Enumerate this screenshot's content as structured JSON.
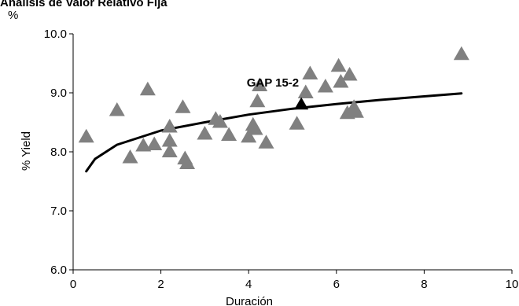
{
  "chart_data": {
    "type": "scatter",
    "title": "Análisis de Valor Relativo Fija",
    "unit_label": "%",
    "xlabel": "Duración",
    "ylabel": "% Yield",
    "xlim": [
      0,
      10
    ],
    "ylim": [
      6.0,
      10.0
    ],
    "xticks": [
      "0",
      "2",
      "4",
      "6",
      "8",
      "10"
    ],
    "yticks": [
      "6.0",
      "7.0",
      "8.0",
      "9.0",
      "10.0"
    ],
    "grid": false,
    "marker": "triangle",
    "colors": {
      "points": "#808080",
      "highlight": "#000000",
      "trend": "#000000"
    },
    "points": [
      {
        "x": 0.3,
        "y": 8.25
      },
      {
        "x": 1.0,
        "y": 8.7
      },
      {
        "x": 1.3,
        "y": 7.9
      },
      {
        "x": 1.6,
        "y": 8.1
      },
      {
        "x": 1.7,
        "y": 9.05
      },
      {
        "x": 1.85,
        "y": 8.12
      },
      {
        "x": 2.2,
        "y": 8.42
      },
      {
        "x": 2.2,
        "y": 8.18
      },
      {
        "x": 2.2,
        "y": 8.0
      },
      {
        "x": 2.5,
        "y": 8.75
      },
      {
        "x": 2.55,
        "y": 7.88
      },
      {
        "x": 2.6,
        "y": 7.8
      },
      {
        "x": 3.0,
        "y": 8.3
      },
      {
        "x": 3.25,
        "y": 8.55
      },
      {
        "x": 3.35,
        "y": 8.5
      },
      {
        "x": 3.55,
        "y": 8.28
      },
      {
        "x": 4.0,
        "y": 8.25
      },
      {
        "x": 4.1,
        "y": 8.45
      },
      {
        "x": 4.15,
        "y": 8.38
      },
      {
        "x": 4.2,
        "y": 8.85
      },
      {
        "x": 4.25,
        "y": 9.12
      },
      {
        "x": 4.4,
        "y": 8.15
      },
      {
        "x": 5.1,
        "y": 8.47
      },
      {
        "x": 5.3,
        "y": 9.0
      },
      {
        "x": 5.4,
        "y": 9.32
      },
      {
        "x": 5.75,
        "y": 9.1
      },
      {
        "x": 6.05,
        "y": 9.45
      },
      {
        "x": 6.1,
        "y": 9.18
      },
      {
        "x": 6.25,
        "y": 8.65
      },
      {
        "x": 6.3,
        "y": 9.3
      },
      {
        "x": 6.4,
        "y": 8.75
      },
      {
        "x": 6.45,
        "y": 8.67
      },
      {
        "x": 8.85,
        "y": 9.65
      }
    ],
    "highlight": {
      "label": "GAP 15-2",
      "x": 5.2,
      "y": 8.8
    },
    "trend": {
      "type": "log",
      "points": [
        {
          "x": 0.3,
          "y": 7.67
        },
        {
          "x": 0.5,
          "y": 7.88
        },
        {
          "x": 1.0,
          "y": 8.12
        },
        {
          "x": 2.0,
          "y": 8.36
        },
        {
          "x": 3.0,
          "y": 8.5
        },
        {
          "x": 4.0,
          "y": 8.63
        },
        {
          "x": 5.0,
          "y": 8.73
        },
        {
          "x": 6.0,
          "y": 8.81
        },
        {
          "x": 7.0,
          "y": 8.88
        },
        {
          "x": 8.0,
          "y": 8.94
        },
        {
          "x": 8.85,
          "y": 8.99
        }
      ]
    }
  }
}
